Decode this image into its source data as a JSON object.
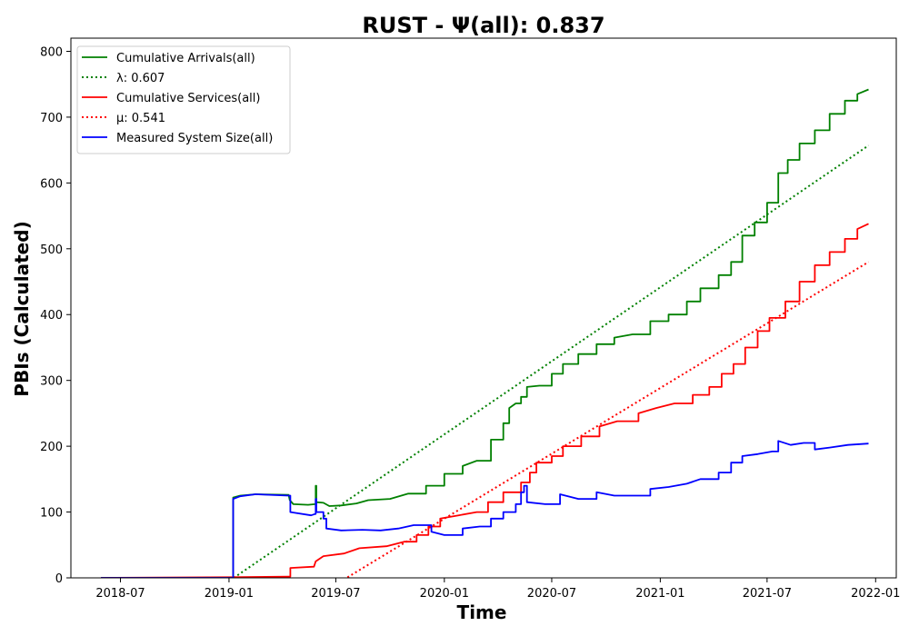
{
  "chart_data": {
    "type": "line",
    "title": "RUST -  Ψ(all): 0.837",
    "xlabel": "Time",
    "ylabel": "PBIs (Calculated)",
    "xlim": [
      "2018-04-08",
      "2022-02-05"
    ],
    "ylim": [
      0,
      820
    ],
    "grid": false,
    "legend_position": "top-left",
    "x_ticks": [
      {
        "date": "2018-07-01",
        "label": "2018-07"
      },
      {
        "date": "2019-01-01",
        "label": "2019-01"
      },
      {
        "date": "2019-07-01",
        "label": "2019-07"
      },
      {
        "date": "2020-01-01",
        "label": "2020-01"
      },
      {
        "date": "2020-07-01",
        "label": "2020-07"
      },
      {
        "date": "2021-01-01",
        "label": "2021-01"
      },
      {
        "date": "2021-07-01",
        "label": "2021-07"
      },
      {
        "date": "2022-01-01",
        "label": "2022-01"
      }
    ],
    "y_ticks": [
      0,
      100,
      200,
      300,
      400,
      500,
      600,
      700,
      800
    ],
    "series": [
      {
        "name": "Cumulative Arrivals(all)",
        "color": "#008000",
        "style": "solid",
        "points": [
          [
            "2018-05-29",
            0
          ],
          [
            "2019-01-07",
            0
          ],
          [
            "2019-01-08",
            122
          ],
          [
            "2019-01-20",
            125
          ],
          [
            "2019-02-15",
            127
          ],
          [
            "2019-04-12",
            126
          ],
          [
            "2019-04-14",
            118
          ],
          [
            "2019-04-20",
            112
          ],
          [
            "2019-05-15",
            111
          ],
          [
            "2019-05-27",
            112
          ],
          [
            "2019-05-28",
            140
          ],
          [
            "2019-05-29",
            115
          ],
          [
            "2019-06-10",
            114
          ],
          [
            "2019-06-20",
            109
          ],
          [
            "2019-07-10",
            110
          ],
          [
            "2019-08-05",
            113
          ],
          [
            "2019-08-25",
            118
          ],
          [
            "2019-10-01",
            120
          ],
          [
            "2019-11-01",
            128
          ],
          [
            "2019-12-01",
            140
          ],
          [
            "2020-01-01",
            158
          ],
          [
            "2020-02-01",
            170
          ],
          [
            "2020-02-25",
            178
          ],
          [
            "2020-03-20",
            210
          ],
          [
            "2020-04-10",
            235
          ],
          [
            "2020-04-20",
            258
          ],
          [
            "2020-05-01",
            265
          ],
          [
            "2020-05-10",
            275
          ],
          [
            "2020-05-20",
            290
          ],
          [
            "2020-06-10",
            292
          ],
          [
            "2020-07-01",
            310
          ],
          [
            "2020-07-20",
            325
          ],
          [
            "2020-08-15",
            340
          ],
          [
            "2020-09-15",
            355
          ],
          [
            "2020-10-15",
            365
          ],
          [
            "2020-11-15",
            370
          ],
          [
            "2020-12-15",
            390
          ],
          [
            "2021-01-15",
            400
          ],
          [
            "2021-02-15",
            420
          ],
          [
            "2021-03-10",
            440
          ],
          [
            "2021-04-10",
            460
          ],
          [
            "2021-05-01",
            480
          ],
          [
            "2021-05-20",
            520
          ],
          [
            "2021-06-10",
            540
          ],
          [
            "2021-07-01",
            570
          ],
          [
            "2021-07-20",
            615
          ],
          [
            "2021-08-05",
            635
          ],
          [
            "2021-08-25",
            660
          ],
          [
            "2021-09-20",
            680
          ],
          [
            "2021-10-15",
            705
          ],
          [
            "2021-11-10",
            725
          ],
          [
            "2021-12-01",
            735
          ],
          [
            "2021-12-20",
            742
          ]
        ]
      },
      {
        "name": "λ: 0.607",
        "color": "#008000",
        "style": "dotted",
        "points": [
          [
            "2019-01-09",
            0
          ],
          [
            "2021-12-20",
            657
          ]
        ]
      },
      {
        "name": "Cumulative Services(all)",
        "color": "#ff0000",
        "style": "solid",
        "points": [
          [
            "2018-05-29",
            0
          ],
          [
            "2019-01-07",
            1
          ],
          [
            "2019-04-12",
            2
          ],
          [
            "2019-04-15",
            15
          ],
          [
            "2019-05-25",
            17
          ],
          [
            "2019-05-28",
            25
          ],
          [
            "2019-06-10",
            33
          ],
          [
            "2019-07-15",
            37
          ],
          [
            "2019-08-10",
            45
          ],
          [
            "2019-09-25",
            48
          ],
          [
            "2019-10-25",
            55
          ],
          [
            "2019-11-15",
            65
          ],
          [
            "2019-12-05",
            78
          ],
          [
            "2019-12-25",
            90
          ],
          [
            "2020-01-25",
            95
          ],
          [
            "2020-02-25",
            100
          ],
          [
            "2020-03-15",
            115
          ],
          [
            "2020-04-10",
            130
          ],
          [
            "2020-05-10",
            145
          ],
          [
            "2020-05-25",
            160
          ],
          [
            "2020-06-05",
            175
          ],
          [
            "2020-07-01",
            185
          ],
          [
            "2020-07-20",
            200
          ],
          [
            "2020-08-20",
            215
          ],
          [
            "2020-09-20",
            230
          ],
          [
            "2020-10-20",
            238
          ],
          [
            "2020-11-25",
            250
          ],
          [
            "2020-12-25",
            258
          ],
          [
            "2021-01-25",
            265
          ],
          [
            "2021-02-25",
            278
          ],
          [
            "2021-03-25",
            290
          ],
          [
            "2021-04-15",
            310
          ],
          [
            "2021-05-05",
            325
          ],
          [
            "2021-05-25",
            350
          ],
          [
            "2021-06-15",
            375
          ],
          [
            "2021-07-05",
            395
          ],
          [
            "2021-08-01",
            420
          ],
          [
            "2021-08-25",
            450
          ],
          [
            "2021-09-20",
            475
          ],
          [
            "2021-10-15",
            495
          ],
          [
            "2021-11-10",
            515
          ],
          [
            "2021-12-01",
            530
          ],
          [
            "2021-12-20",
            538
          ]
        ]
      },
      {
        "name": "μ: 0.541",
        "color": "#ff0000",
        "style": "dotted",
        "points": [
          [
            "2019-07-01",
            -10
          ],
          [
            "2021-12-20",
            480
          ]
        ]
      },
      {
        "name": "Measured System Size(all)",
        "color": "#0000ff",
        "style": "solid",
        "points": [
          [
            "2018-05-29",
            0
          ],
          [
            "2019-01-07",
            0
          ],
          [
            "2019-01-08",
            120
          ],
          [
            "2019-01-20",
            124
          ],
          [
            "2019-02-15",
            127
          ],
          [
            "2019-04-12",
            125
          ],
          [
            "2019-04-15",
            100
          ],
          [
            "2019-05-20",
            95
          ],
          [
            "2019-05-27",
            97
          ],
          [
            "2019-05-28",
            120
          ],
          [
            "2019-05-29",
            100
          ],
          [
            "2019-06-10",
            90
          ],
          [
            "2019-06-15",
            75
          ],
          [
            "2019-07-10",
            72
          ],
          [
            "2019-08-15",
            73
          ],
          [
            "2019-09-15",
            72
          ],
          [
            "2019-10-15",
            75
          ],
          [
            "2019-11-10",
            80
          ],
          [
            "2019-12-10",
            70
          ],
          [
            "2020-01-01",
            65
          ],
          [
            "2020-02-01",
            75
          ],
          [
            "2020-03-01",
            78
          ],
          [
            "2020-03-20",
            90
          ],
          [
            "2020-04-10",
            100
          ],
          [
            "2020-05-01",
            112
          ],
          [
            "2020-05-10",
            130
          ],
          [
            "2020-05-15",
            140
          ],
          [
            "2020-05-20",
            115
          ],
          [
            "2020-06-20",
            112
          ],
          [
            "2020-07-15",
            127
          ],
          [
            "2020-08-15",
            120
          ],
          [
            "2020-09-15",
            130
          ],
          [
            "2020-10-15",
            125
          ],
          [
            "2020-11-15",
            125
          ],
          [
            "2020-12-15",
            135
          ],
          [
            "2021-01-15",
            138
          ],
          [
            "2021-02-15",
            143
          ],
          [
            "2021-03-10",
            150
          ],
          [
            "2021-04-10",
            160
          ],
          [
            "2021-05-01",
            175
          ],
          [
            "2021-05-20",
            185
          ],
          [
            "2021-06-15",
            188
          ],
          [
            "2021-07-10",
            192
          ],
          [
            "2021-07-20",
            208
          ],
          [
            "2021-08-10",
            202
          ],
          [
            "2021-09-01",
            205
          ],
          [
            "2021-09-20",
            195
          ],
          [
            "2021-10-15",
            198
          ],
          [
            "2021-11-15",
            202
          ],
          [
            "2021-12-20",
            204
          ]
        ]
      }
    ]
  }
}
